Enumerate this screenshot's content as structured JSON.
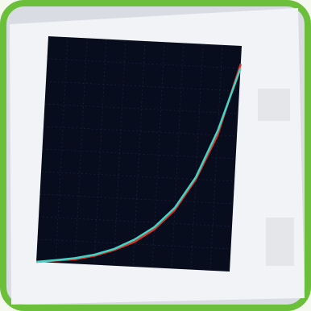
{
  "chart_data": {
    "type": "line",
    "x": [
      0,
      0.1,
      0.2,
      0.3,
      0.4,
      0.5,
      0.6,
      0.7,
      0.8,
      0.9,
      1.0
    ],
    "xlim": [
      0,
      1
    ],
    "ylim": [
      0,
      1
    ],
    "series": [
      {
        "color": "#d8352a",
        "values": [
          0.0,
          0.01,
          0.02,
          0.04,
          0.07,
          0.11,
          0.17,
          0.26,
          0.4,
          0.6,
          0.92
        ]
      },
      {
        "color": "#3fd6c8",
        "values": [
          0.0,
          0.012,
          0.025,
          0.045,
          0.075,
          0.12,
          0.18,
          0.27,
          0.41,
          0.62,
          0.9
        ]
      }
    ]
  }
}
